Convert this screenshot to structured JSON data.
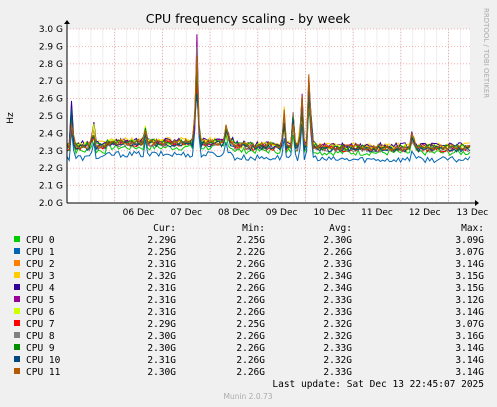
{
  "chart_data": {
    "type": "line",
    "title": "CPU frequency scaling - by week",
    "ylabel": "Hz",
    "xlabel": "",
    "ylim": [
      2.0,
      3.0
    ],
    "yticks": [
      "2.0 G",
      "2.1 G",
      "2.2 G",
      "2.3 G",
      "2.4 G",
      "2.5 G",
      "2.6 G",
      "2.7 G",
      "2.8 G",
      "2.9 G",
      "3.0 G"
    ],
    "xticks": [
      {
        "label": "06 Dec",
        "x": 1.0
      },
      {
        "label": "07 Dec",
        "x": 2.0
      },
      {
        "label": "08 Dec",
        "x": 3.0
      },
      {
        "label": "09 Dec",
        "x": 4.0
      },
      {
        "label": "10 Dec",
        "x": 5.0
      },
      {
        "label": "11 Dec",
        "x": 6.0
      },
      {
        "label": "12 Dec",
        "x": 7.0
      },
      {
        "label": "13 Dec",
        "x": 8.0
      }
    ],
    "xlim": [
      0.0,
      8.45
    ],
    "grid": true,
    "legend_headers": [
      "Cur:",
      "Min:",
      "Avg:",
      "Max:"
    ],
    "series": [
      {
        "name": "CPU 0",
        "color": "#00cc00",
        "cur": "2.29G",
        "min": "2.25G",
        "avg": "2.30G",
        "max": "3.09G"
      },
      {
        "name": "CPU 1",
        "color": "#0066b3",
        "cur": "2.25G",
        "min": "2.22G",
        "avg": "2.26G",
        "max": "3.07G"
      },
      {
        "name": "CPU 2",
        "color": "#ff8000",
        "cur": "2.31G",
        "min": "2.26G",
        "avg": "2.33G",
        "max": "3.14G"
      },
      {
        "name": "CPU 3",
        "color": "#ffcc00",
        "cur": "2.32G",
        "min": "2.26G",
        "avg": "2.34G",
        "max": "3.15G"
      },
      {
        "name": "CPU 4",
        "color": "#330099",
        "cur": "2.31G",
        "min": "2.26G",
        "avg": "2.34G",
        "max": "3.15G"
      },
      {
        "name": "CPU 5",
        "color": "#990099",
        "cur": "2.31G",
        "min": "2.26G",
        "avg": "2.33G",
        "max": "3.12G"
      },
      {
        "name": "CPU 6",
        "color": "#ccff00",
        "cur": "2.31G",
        "min": "2.26G",
        "avg": "2.33G",
        "max": "3.14G"
      },
      {
        "name": "CPU 7",
        "color": "#ff0000",
        "cur": "2.29G",
        "min": "2.25G",
        "avg": "2.32G",
        "max": "3.07G"
      },
      {
        "name": "CPU 8",
        "color": "#808080",
        "cur": "2.30G",
        "min": "2.26G",
        "avg": "2.32G",
        "max": "3.16G"
      },
      {
        "name": "CPU 9",
        "color": "#008f00",
        "cur": "2.30G",
        "min": "2.26G",
        "avg": "2.33G",
        "max": "3.14G"
      },
      {
        "name": "CPU 10",
        "color": "#00487d",
        "cur": "2.31G",
        "min": "2.26G",
        "avg": "2.32G",
        "max": "3.14G"
      },
      {
        "name": "CPU 11",
        "color": "#b35a00",
        "cur": "2.30G",
        "min": "2.26G",
        "avg": "2.33G",
        "max": "3.14G"
      }
    ],
    "last_update": "Last update: Sat Dec 13 22:45:07 2025"
  },
  "side_label": "RRDTOOL / TOBI OETIKER",
  "footer": "Munin 2.0.73"
}
